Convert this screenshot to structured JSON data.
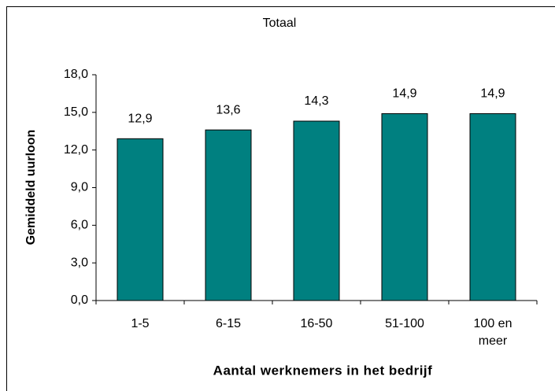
{
  "chart_data": {
    "type": "bar",
    "title": "Totaal",
    "xlabel": "Aantal werknemers in het bedrijf",
    "ylabel": "Gemiddeld uurloon",
    "categories": [
      "1-5",
      "6-15",
      "16-50",
      "51-100",
      "100 en meer"
    ],
    "values": [
      12.9,
      13.6,
      14.3,
      14.9,
      14.9
    ],
    "value_labels": [
      "12,9",
      "13,6",
      "14,3",
      "14,9",
      "14,9"
    ],
    "color": "#008080",
    "ylim": [
      0,
      18
    ],
    "yticks": [
      {
        "value": 0,
        "label": "0,0"
      },
      {
        "value": 3,
        "label": "3,0"
      },
      {
        "value": 6,
        "label": "6,0"
      },
      {
        "value": 9,
        "label": "9,0"
      },
      {
        "value": 12,
        "label": "12,0"
      },
      {
        "value": 15,
        "label": "15,0"
      },
      {
        "value": 18,
        "label": "18,0"
      }
    ],
    "grid": false
  }
}
